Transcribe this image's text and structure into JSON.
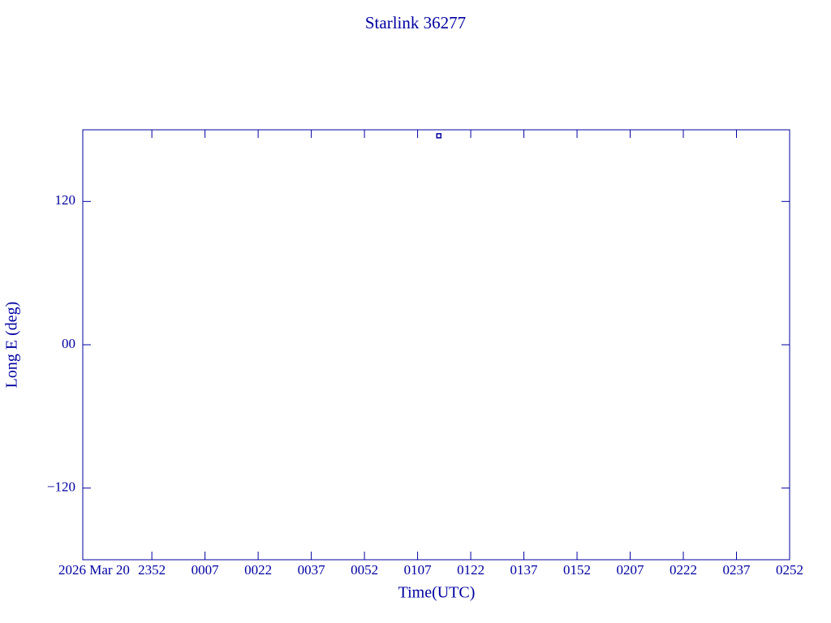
{
  "chart_data": {
    "type": "scatter",
    "title": "Starlink 36277",
    "x_label": "Time(UTC)",
    "y_label": "Long E (deg)",
    "x_start_label": "2026 Mar 20",
    "color": "#0000a0",
    "series": [
      {
        "x": [
          73
        ],
        "values": [
          175
        ]
      }
    ],
    "xlim": [
      -27.5,
      172
    ],
    "ylim": [
      -180,
      180
    ],
    "xticks": [
      {
        "value": -8,
        "label": "2352"
      },
      {
        "value": 7,
        "label": "0007"
      },
      {
        "value": 22,
        "label": "0022"
      },
      {
        "value": 37,
        "label": "0037"
      },
      {
        "value": 52,
        "label": "0052"
      },
      {
        "value": 67,
        "label": "0107"
      },
      {
        "value": 82,
        "label": "0122"
      },
      {
        "value": 97,
        "label": "0137"
      },
      {
        "value": 112,
        "label": "0152"
      },
      {
        "value": 127,
        "label": "0207"
      },
      {
        "value": 142,
        "label": "0222"
      },
      {
        "value": 157,
        "label": "0237"
      },
      {
        "value": 172,
        "label": "0252"
      }
    ],
    "yticks": [
      {
        "value": -120,
        "label": "−120"
      },
      {
        "value": 0,
        "label": "00"
      },
      120
    ]
  }
}
